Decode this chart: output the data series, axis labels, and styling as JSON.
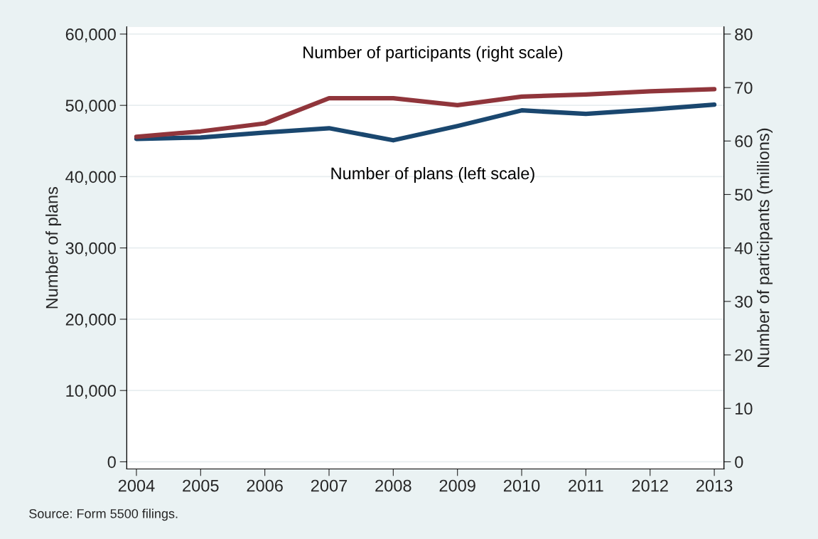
{
  "chart_data": {
    "type": "line",
    "categories": [
      "2004",
      "2005",
      "2006",
      "2007",
      "2008",
      "2009",
      "2010",
      "2011",
      "2012",
      "2013"
    ],
    "series": [
      {
        "name": "Number of plans (left scale)",
        "color": "#1a476f",
        "values": [
          45300,
          45500,
          46200,
          46800,
          45100,
          47100,
          49300,
          48800,
          49400,
          50100
        ]
      },
      {
        "name": "Number of participants (right scale)",
        "color": "#90353b",
        "axis": "y2",
        "values": [
          60.8,
          61.8,
          63.3,
          68.0,
          68.0,
          66.7,
          68.3,
          68.7,
          69.3,
          69.7
        ]
      }
    ],
    "ylabel": "Number of plans",
    "y2label": "Number of participants (millions)",
    "ylim": [
      -1000,
      61000
    ],
    "yticks": [
      {
        "value": 0,
        "label": "0"
      },
      {
        "value": 10000,
        "label": "10,000"
      },
      {
        "value": 20000,
        "label": "20,000"
      },
      {
        "value": 30000,
        "label": "30,000"
      },
      {
        "value": 40000,
        "label": "40,000"
      },
      {
        "value": 50000,
        "label": "50,000"
      },
      {
        "value": 60000,
        "label": "60,000"
      }
    ],
    "y2lim": [
      -1.333,
      81.333
    ],
    "y2ticks": [
      0,
      10,
      20,
      30,
      40,
      50,
      60,
      70,
      80
    ],
    "grid": "y",
    "legend": false,
    "annotations": [
      "Source: Form 5500 filings."
    ]
  }
}
